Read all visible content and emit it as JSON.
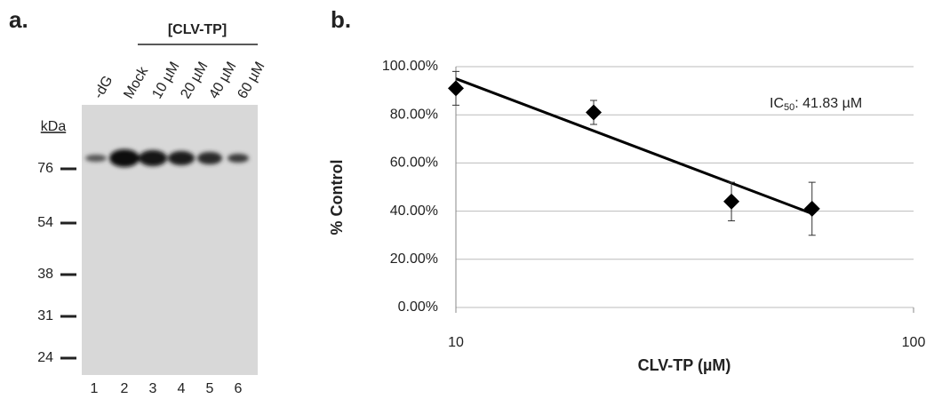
{
  "gel": {
    "panel_label": "a.",
    "bracket_label": "[CLV-TP]",
    "lanes": [
      "-dG",
      "Mock",
      "10 µM",
      "20 µM",
      "40 µM",
      "60 µM"
    ],
    "lane_numbers": [
      "1",
      "2",
      "3",
      "4",
      "5",
      "6"
    ],
    "marker_unit": "kDa",
    "markers": [
      "76",
      "54",
      "38",
      "31",
      "24"
    ]
  },
  "chart_data": {
    "type": "scatter",
    "panel_label": "b.",
    "x_label": "CLV-TP (µM)",
    "y_label": "% Control",
    "x": [
      10,
      20,
      40,
      60
    ],
    "values": [
      91,
      81,
      44,
      41
    ],
    "errors": [
      7,
      5,
      8,
      11
    ],
    "color": "#000000",
    "trendline": {
      "x": [
        10,
        60
      ],
      "values": [
        95,
        39
      ]
    },
    "annotation": {
      "text": "IC",
      "subscript": "50",
      "suffix": ": 41.83 µM"
    },
    "xlim": [
      10,
      100
    ],
    "xticks": [
      10,
      100
    ],
    "xscale": "log",
    "ylim": [
      0,
      100
    ],
    "yticks": [
      {
        "value": 0,
        "label": "0.00%"
      },
      {
        "value": 20,
        "label": "20.00%"
      },
      {
        "value": 40,
        "label": "40.00%"
      },
      {
        "value": 60,
        "label": "60.00%"
      },
      {
        "value": 80,
        "label": "80.00%"
      },
      {
        "value": 100,
        "label": "100.00%"
      }
    ],
    "grid": true
  }
}
